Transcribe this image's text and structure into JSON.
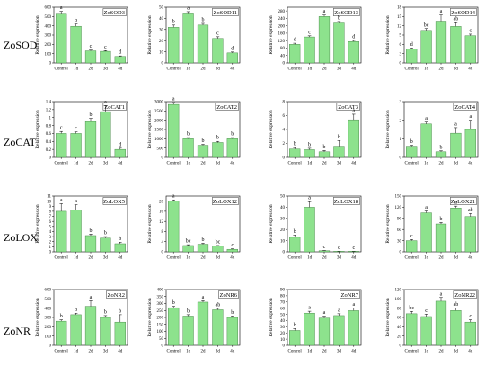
{
  "colors": {
    "bar_fill": "#8de28d",
    "bar_stroke": "#3a7a3a",
    "axis": "#000000",
    "error": "#000000"
  },
  "row_labels": [
    "ZoSOD",
    "ZoCAT",
    "ZoLOX",
    "ZoNR"
  ],
  "ylabel": "Relative expression",
  "categories": [
    "Control",
    "1d",
    "2d",
    "3d",
    "4d"
  ],
  "chart_data": [
    {
      "type": "bar",
      "title": "ZoSOD3",
      "ylim": [
        0,
        600
      ],
      "yticks": [
        0,
        100,
        200,
        300,
        400,
        500,
        600
      ],
      "values": [
        525,
        395,
        130,
        125,
        70
      ],
      "errors": [
        30,
        25,
        8,
        8,
        6
      ],
      "letters": [
        "a",
        "b",
        "c",
        "c",
        "d"
      ]
    },
    {
      "type": "bar",
      "title": "ZoSOD11",
      "ylim": [
        0,
        50
      ],
      "yticks": [
        0,
        10,
        20,
        30,
        40,
        50
      ],
      "values": [
        32,
        44,
        34,
        22,
        9
      ],
      "errors": [
        2,
        2,
        1.5,
        1.5,
        0.8
      ],
      "letters": [
        "b",
        "a",
        "b",
        "c",
        "d"
      ]
    },
    {
      "type": "bar",
      "title": "ZoSOD13",
      "ylim": [
        0,
        300
      ],
      "yticks": [
        0,
        40,
        80,
        120,
        160,
        200,
        240,
        280
      ],
      "values": [
        100,
        140,
        250,
        215,
        115
      ],
      "errors": [
        6,
        6,
        8,
        8,
        6
      ],
      "letters": [
        "d",
        "c",
        "a",
        "b",
        "d"
      ]
    },
    {
      "type": "bar",
      "title": "ZoSOD14",
      "ylim": [
        0,
        18
      ],
      "yticks": [
        0,
        3,
        6,
        9,
        12,
        15,
        18
      ],
      "values": [
        4.5,
        10.5,
        13.5,
        11.8,
        8.8
      ],
      "errors": [
        0.3,
        0.6,
        2.0,
        1.2,
        0.5
      ],
      "letters": [
        "d",
        "bc",
        "a",
        "ab",
        "c"
      ]
    },
    {
      "type": "bar",
      "title": "ZoCAT1",
      "ylim": [
        0,
        1.4
      ],
      "yticks": [
        0,
        0.2,
        0.4,
        0.6,
        0.8,
        1.0,
        1.2,
        1.4
      ],
      "values": [
        0.6,
        0.6,
        0.9,
        1.15,
        0.2
      ],
      "errors": [
        0.05,
        0.04,
        0.08,
        0.15,
        0.03
      ],
      "letters": [
        "c",
        "c",
        "b",
        "a",
        "d"
      ]
    },
    {
      "type": "bar",
      "title": "ZoCAT2",
      "ylim": [
        0,
        3000
      ],
      "yticks": [
        0,
        500,
        1000,
        1500,
        2000,
        2500,
        3000
      ],
      "values": [
        2850,
        1000,
        650,
        800,
        1000
      ],
      "errors": [
        100,
        60,
        50,
        60,
        60
      ],
      "letters": [
        "a",
        "b",
        "b",
        "b",
        "b"
      ]
    },
    {
      "type": "bar",
      "title": "ZoCAT3",
      "ylim": [
        0,
        8
      ],
      "yticks": [
        0,
        2,
        4,
        6,
        8
      ],
      "values": [
        1.2,
        1.1,
        0.8,
        1.6,
        5.4
      ],
      "errors": [
        0.2,
        0.2,
        0.2,
        0.8,
        0.8
      ],
      "letters": [
        "b",
        "b",
        "b",
        "b",
        "a"
      ]
    },
    {
      "type": "bar",
      "title": "ZoCAT4",
      "ylim": [
        0,
        3
      ],
      "yticks": [
        0,
        1,
        2,
        3
      ],
      "values": [
        0.6,
        1.8,
        0.3,
        1.3,
        1.5
      ],
      "errors": [
        0.05,
        0.1,
        0.05,
        0.3,
        0.5
      ],
      "letters": [
        "b",
        "a",
        "b",
        "a",
        "a"
      ]
    },
    {
      "type": "bar",
      "title": "ZoLOX5",
      "ylim": [
        0,
        11
      ],
      "yticks": [
        0,
        1,
        2,
        3,
        4,
        5,
        6,
        7,
        8,
        9,
        10,
        11
      ],
      "values": [
        8,
        8.3,
        3.2,
        2.7,
        1.6
      ],
      "errors": [
        1.5,
        1.0,
        0.3,
        0.3,
        0.3
      ],
      "letters": [
        "a",
        "a",
        "b",
        "b",
        "b"
      ]
    },
    {
      "type": "bar",
      "title": "ZoLOX12",
      "ylim": [
        0,
        22
      ],
      "yticks": [
        0,
        4,
        8,
        12,
        16,
        20
      ],
      "values": [
        20,
        2.5,
        3,
        2.2,
        1
      ],
      "errors": [
        0.5,
        0.3,
        0.4,
        0.3,
        0.2
      ],
      "letters": [
        "a",
        "bc",
        "b",
        "bc",
        "c"
      ]
    },
    {
      "type": "bar",
      "title": "ZoLOX18",
      "ylim": [
        0,
        50
      ],
      "yticks": [
        0,
        10,
        20,
        30,
        40,
        50
      ],
      "values": [
        13,
        40,
        1,
        0.5,
        0.5
      ],
      "errors": [
        2,
        5,
        0.2,
        0.1,
        0.1
      ],
      "letters": [
        "b",
        "a",
        "c",
        "c",
        "c"
      ]
    },
    {
      "type": "bar",
      "title": "ZoLOX21",
      "ylim": [
        0,
        150
      ],
      "yticks": [
        0,
        30,
        60,
        90,
        120,
        150
      ],
      "values": [
        30,
        105,
        75,
        118,
        95
      ],
      "errors": [
        3,
        5,
        4,
        5,
        8
      ],
      "letters": [
        "c",
        "a",
        "b",
        "a",
        "ab"
      ]
    },
    {
      "type": "bar",
      "title": "ZoNR2",
      "ylim": [
        0,
        600
      ],
      "yticks": [
        0,
        100,
        200,
        300,
        400,
        500,
        600
      ],
      "values": [
        260,
        330,
        420,
        300,
        250
      ],
      "errors": [
        15,
        15,
        60,
        20,
        80
      ],
      "letters": [
        "b",
        "b",
        "a",
        "b",
        "b"
      ]
    },
    {
      "type": "bar",
      "title": "ZoNR6",
      "ylim": [
        0,
        400
      ],
      "yticks": [
        0,
        50,
        100,
        150,
        200,
        250,
        300,
        350,
        400
      ],
      "values": [
        270,
        210,
        310,
        255,
        200
      ],
      "errors": [
        10,
        10,
        10,
        10,
        10
      ],
      "letters": [
        "b",
        "b",
        "a",
        "ab",
        "b"
      ]
    },
    {
      "type": "bar",
      "title": "ZoNR7",
      "ylim": [
        0,
        90
      ],
      "yticks": [
        0,
        10,
        20,
        30,
        40,
        50,
        60,
        70,
        80,
        90
      ],
      "values": [
        24,
        52,
        44,
        48,
        56
      ],
      "errors": [
        3,
        3,
        3,
        3,
        4
      ],
      "letters": [
        "b",
        "a",
        "a",
        "a",
        "a"
      ]
    },
    {
      "type": "bar",
      "title": "ZoNR22",
      "ylim": [
        0,
        120
      ],
      "yticks": [
        0,
        20,
        40,
        60,
        80,
        100,
        120
      ],
      "values": [
        68,
        62,
        95,
        75,
        50
      ],
      "errors": [
        5,
        5,
        8,
        5,
        5
      ],
      "letters": [
        "bc",
        "c",
        "a",
        "ab",
        "c"
      ]
    }
  ]
}
